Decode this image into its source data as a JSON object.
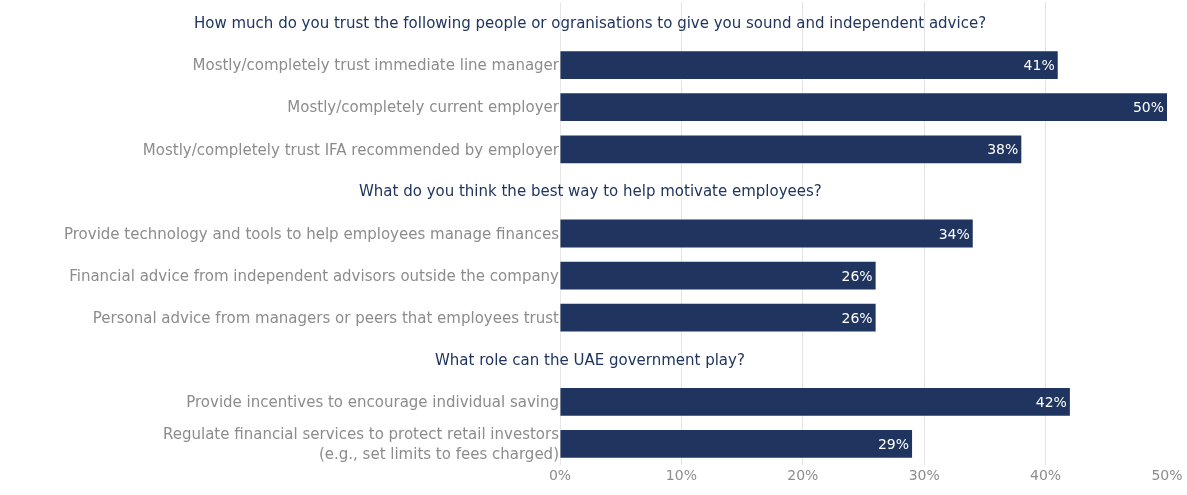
{
  "chart_data": {
    "type": "bar",
    "orientation": "horizontal",
    "categories": [
      null,
      "Mostly/completely trust immediate line manager",
      "Mostly/completely current employer",
      "Mostly/completely trust IFA recommended by employer",
      null,
      "Provide technology and tools to help employees manage finances",
      "Financial advice from independent advisors outside the company",
      "Personal advice from managers or peers that employees trust",
      null,
      "Provide incentives to encourage individual saving",
      "Regulate financial services to protect retail investors\n(e.g., set limits to fees charged)"
    ],
    "values": [
      null,
      41,
      50,
      38,
      null,
      34,
      26,
      26,
      null,
      42,
      29
    ],
    "value_labels": [
      null,
      "41%",
      "50%",
      "38%",
      null,
      "34%",
      "26%",
      "26%",
      null,
      "42%",
      "29%"
    ],
    "color": "#1f3560",
    "annotations": [
      "How much do you trust the following people or ogranisations to give you sound and independent advice?",
      "What do you think the best way to help motivate employees?",
      "What role can the UAE government play?"
    ],
    "xlim": [
      0,
      50
    ],
    "xticks": [
      {
        "value": 0,
        "label": "0%"
      },
      {
        "value": 10,
        "label": "10%"
      },
      {
        "value": 20,
        "label": "20%"
      },
      {
        "value": 30,
        "label": "30%"
      },
      {
        "value": 40,
        "label": "40%"
      },
      {
        "value": 50,
        "label": "50%"
      }
    ],
    "grid": "x",
    "legend": false
  }
}
